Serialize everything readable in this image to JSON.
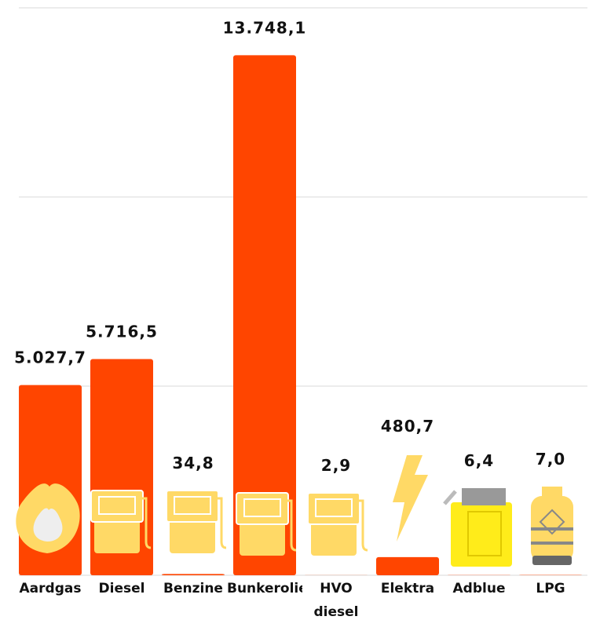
{
  "chart_data": {
    "type": "bar",
    "categories": [
      "Aardgas",
      "Diesel",
      "Benzine",
      "Bunkerolie",
      "HVO diesel",
      "Elektra",
      "Adblue",
      "LPG"
    ],
    "values": [
      5027.7,
      5716.5,
      34.8,
      13748.1,
      2.9,
      480.7,
      6.4,
      7.0
    ],
    "value_labels": [
      "5.027,7",
      "5.716,5",
      "34,8",
      "13.748,1",
      "2,9",
      "480,7",
      "6,4",
      "7,0"
    ],
    "color": "#ff4500",
    "ylim": [
      0,
      15000
    ],
    "yticks": [
      0,
      5000,
      10000,
      15000
    ],
    "grid": true
  }
}
